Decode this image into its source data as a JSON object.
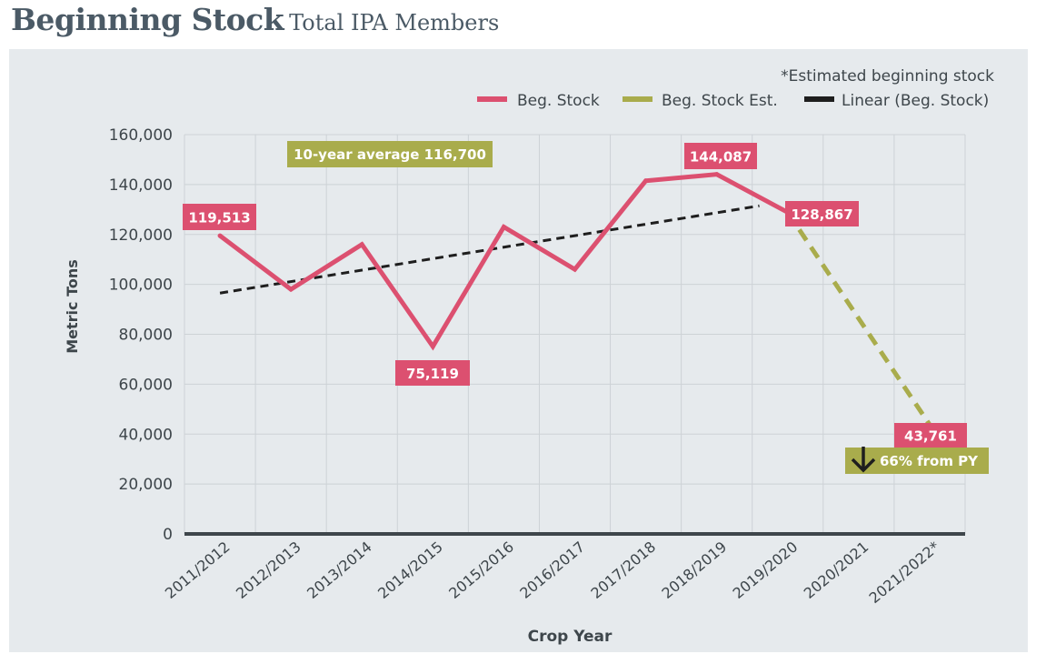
{
  "header": {
    "title": "Beginning Stock",
    "subtitle": "Total IPA Members"
  },
  "colors": {
    "beg_stock": "#dc5070",
    "beg_stock_est": "#a9ac4c",
    "trend": "#1e1e1e",
    "axis": "#3e464b",
    "grid": "#cdd2d6",
    "text": "#3e464b",
    "panel": "#e6eaed"
  },
  "chart_data": {
    "type": "line",
    "title": "Beginning Stock",
    "subtitle": "Total IPA Members",
    "xlabel": "Crop Year",
    "ylabel": "Metric Tons",
    "ylim": [
      0,
      160000
    ],
    "yticks": [
      0,
      20000,
      40000,
      60000,
      80000,
      100000,
      120000,
      140000,
      160000
    ],
    "ytick_labels": [
      "0",
      "20,000",
      "40,000",
      "60,000",
      "80,000",
      "100,000",
      "120,000",
      "140,000",
      "160,000"
    ],
    "grid": true,
    "legend_position": "top-right",
    "footnote": "*Estimated beginning stock",
    "categories": [
      "2011/2012",
      "2012/2013",
      "2013/2014",
      "2014/2015",
      "2015/2016",
      "2016/2017",
      "2017/2018",
      "2018/2019",
      "2019/2020",
      "2020/2021",
      "2021/2022*"
    ],
    "series": [
      {
        "name": "Beg. Stock",
        "style": "solid",
        "values": [
          119513,
          98000,
          116000,
          75119,
          123000,
          106000,
          141500,
          144087,
          128867,
          null,
          null
        ]
      },
      {
        "name": "Beg. Stock Est.",
        "style": "dashed",
        "values": [
          null,
          null,
          null,
          null,
          null,
          null,
          null,
          null,
          128867,
          null,
          43761
        ]
      },
      {
        "name": "Linear (Beg. Stock)",
        "style": "dashed",
        "type": "trendline",
        "start_index": 0,
        "end_index": 7.6,
        "start_value": 96500,
        "end_value": 131460
      }
    ],
    "data_labels": [
      {
        "category_index": 0,
        "text": "119,513",
        "color": "beg_stock"
      },
      {
        "category_index": 3,
        "text": "75,119",
        "color": "beg_stock"
      },
      {
        "category_index": 7,
        "text": "144,087",
        "color": "beg_stock"
      },
      {
        "category_index": 8,
        "text": "128,867",
        "color": "beg_stock"
      },
      {
        "category_index": 10,
        "text": "43,761",
        "color": "beg_stock"
      }
    ],
    "annotations": [
      {
        "text": "10-year average 116,700",
        "color": "beg_stock_est"
      },
      {
        "text": "66% from PY",
        "color": "beg_stock_est",
        "icon": "arrow-down-icon"
      }
    ]
  }
}
